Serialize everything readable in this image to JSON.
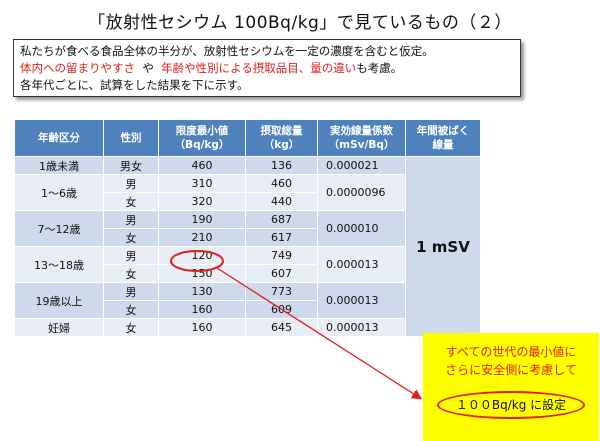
{
  "title": "「放射性セシウム 100Bq/kg」で見ているもの（２）",
  "note": {
    "line1": "私たちが食べる食品全体の半分が、放射性セシウムを一定の濃度を含むと仮定。",
    "line2_red1": "体内への留まりやすさ",
    "line2_mid": "や",
    "line2_red2": "年齢や性別による摂取品目、量の違い",
    "line2_end": "も考慮。",
    "line3": "各年代ごとに、試算をした結果を下に示す。"
  },
  "table": {
    "headers": {
      "age": "年齢区分",
      "sex": "性別",
      "limit": [
        "限度最小値",
        "（Bq/kg）"
      ],
      "intake": [
        "摂取総量",
        "（kg）"
      ],
      "coef": [
        "実効線量係数",
        "（mSv/Bq）"
      ],
      "dose": [
        "年間被ばく",
        "線量"
      ]
    },
    "r1": {
      "age": "1歳未満",
      "sex": "男女",
      "limit": "460",
      "intake": "136",
      "coef": "0.000021"
    },
    "r2": {
      "age": "1～6歳",
      "coef": "0.0000096",
      "m": {
        "sex": "男",
        "limit": "310",
        "intake": "460"
      },
      "f": {
        "sex": "女",
        "limit": "320",
        "intake": "440"
      }
    },
    "r3": {
      "age": "7～12歳",
      "coef": "0.000010",
      "m": {
        "sex": "男",
        "limit": "190",
        "intake": "687"
      },
      "f": {
        "sex": "女",
        "limit": "210",
        "intake": "617"
      }
    },
    "r4": {
      "age": "13～18歳",
      "coef": "0.000013",
      "m": {
        "sex": "男",
        "limit": "120",
        "intake": "749"
      },
      "f": {
        "sex": "女",
        "limit": "150",
        "intake": "607"
      }
    },
    "r5": {
      "age": "19歳以上",
      "coef": "0.000013",
      "m": {
        "sex": "男",
        "limit": "130",
        "intake": "773"
      },
      "f": {
        "sex": "女",
        "limit": "160",
        "intake": "609"
      }
    },
    "r6": {
      "age": "妊婦",
      "sex": "女",
      "limit": "160",
      "intake": "645",
      "coef": "0.000013"
    },
    "dose_value": "1 mSV"
  },
  "callout": {
    "line1": "すべての世代の最小値に",
    "line2": "さらに安全側に考慮して",
    "setting": "１００Bq/kg に設定"
  },
  "colors": {
    "header": "#4f81bd",
    "row": "#cfd9ec",
    "row_alt": "#e8edf6",
    "accent_red": "#e0201a",
    "callout_bg": "#ffff00"
  }
}
